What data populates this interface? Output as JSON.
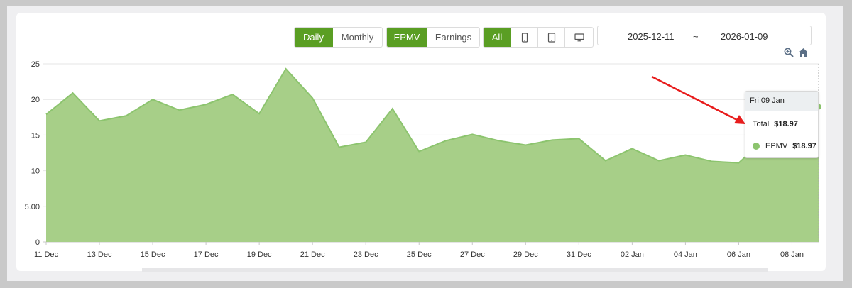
{
  "controls": {
    "period": {
      "daily": "Daily",
      "monthly": "Monthly"
    },
    "metric": {
      "epmv": "EPMV",
      "earnings": "Earnings"
    },
    "device": {
      "all": "All",
      "icons": [
        "tablet-icon",
        "tablet-landscape-icon",
        "desktop-icon"
      ]
    },
    "date_range": {
      "start": "2025-12-11",
      "separator": "~",
      "end": "2026-01-09"
    },
    "toolbar_icons": [
      "zoom-icon",
      "home-icon"
    ]
  },
  "colors": {
    "accent": "#5a9e23",
    "series_fill": "#a7cf88",
    "series_line": "#8cc46e",
    "annotation_arrow": "#e81c1c"
  },
  "tooltip": {
    "date": "Fri 09 Jan",
    "total_label": "Total",
    "total_value": "$18.97",
    "series_label": "EPMV",
    "series_value": "$18.97"
  },
  "chart_data": {
    "type": "area",
    "title": "",
    "xlabel": "",
    "ylabel": "",
    "x": [
      "11 Dec",
      "12 Dec",
      "13 Dec",
      "14 Dec",
      "15 Dec",
      "16 Dec",
      "17 Dec",
      "18 Dec",
      "19 Dec",
      "20 Dec",
      "21 Dec",
      "22 Dec",
      "23 Dec",
      "24 Dec",
      "25 Dec",
      "26 Dec",
      "27 Dec",
      "28 Dec",
      "29 Dec",
      "30 Dec",
      "31 Dec",
      "01 Jan",
      "02 Jan",
      "03 Jan",
      "04 Jan",
      "05 Jan",
      "06 Jan",
      "07 Jan",
      "08 Jan",
      "09 Jan"
    ],
    "x_tick_labels": [
      "11 Dec",
      "13 Dec",
      "15 Dec",
      "17 Dec",
      "19 Dec",
      "21 Dec",
      "23 Dec",
      "25 Dec",
      "27 Dec",
      "29 Dec",
      "31 Dec",
      "02 Jan",
      "04 Jan",
      "06 Jan",
      "08 Jan"
    ],
    "series": [
      {
        "values": [
          17.9,
          20.9,
          17.0,
          17.7,
          20.0,
          18.5,
          19.3,
          20.7,
          18.0,
          24.3,
          20.2,
          13.3,
          14.0,
          18.7,
          12.7,
          14.2,
          15.1,
          14.2,
          13.6,
          14.3,
          14.5,
          11.4,
          13.1,
          11.4,
          12.2,
          11.3,
          11.1,
          14.5,
          17.5,
          18.97
        ]
      }
    ],
    "y_ticks": [
      0,
      5,
      10,
      15,
      20,
      25
    ],
    "y_tick_labels": [
      "0",
      "5.00",
      "10",
      "15",
      "20",
      "25"
    ],
    "ylim": [
      0,
      25
    ],
    "grid": true,
    "legend": "none"
  }
}
